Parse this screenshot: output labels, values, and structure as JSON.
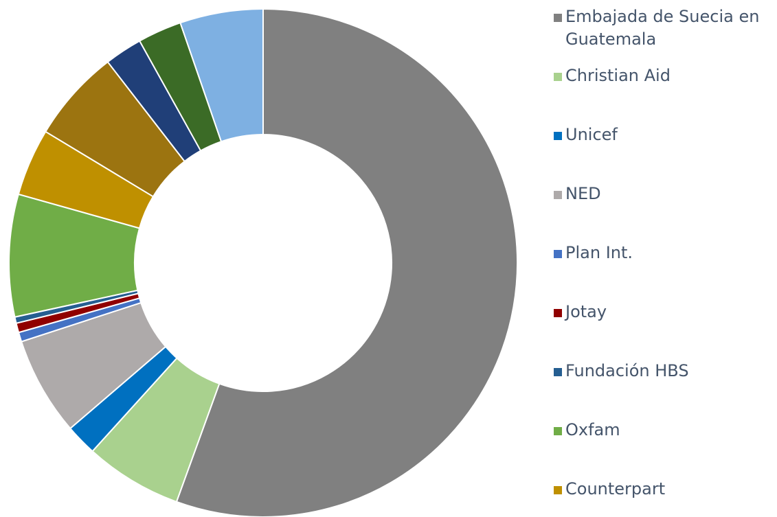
{
  "chart_data": {
    "type": "donut",
    "categories": [
      "Embajada de Suecia en Guatemala",
      "Christian Aid",
      "Unicef",
      "NED",
      "Plan Int.",
      "Jotay",
      "Fundación HBS",
      "Oxfam",
      "Counterpart",
      null,
      null,
      null,
      null
    ],
    "values": [
      55.7,
      6.2,
      2.0,
      6.3,
      0.6,
      0.6,
      0.4,
      7.8,
      4.3,
      5.9,
      2.4,
      2.8,
      5.3
    ],
    "colors": [
      "#808080",
      "#a9d18e",
      "#0070c0",
      "#aeaaaa",
      "#4472c4",
      "#900000",
      "#255e91",
      "#70ad47",
      "#bf9000",
      "#9c7410",
      "#203f78",
      "#3b6b26",
      "#7eb0e2"
    ],
    "legend": "right"
  }
}
